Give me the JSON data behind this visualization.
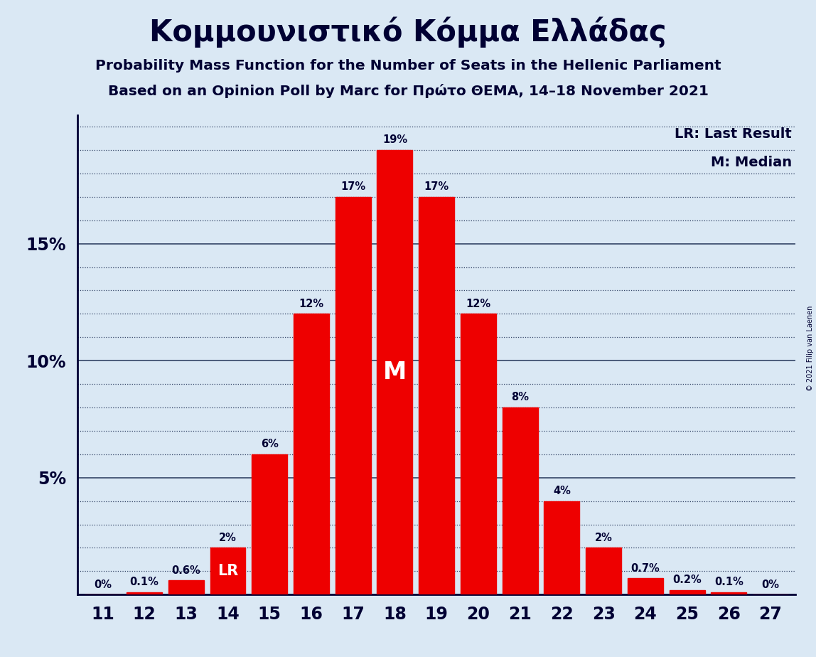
{
  "title": "Κομμουνιστικό Κόμμα Ελλάδας",
  "subtitle1": "Probability Mass Function for the Number of Seats in the Hellenic Parliament",
  "subtitle2": "Based on an Opinion Poll by Marc for Πρώτο ΘΕΜΑ, 14–18 November 2021",
  "copyright": "© 2021 Filip van Laenen",
  "categories": [
    11,
    12,
    13,
    14,
    15,
    16,
    17,
    18,
    19,
    20,
    21,
    22,
    23,
    24,
    25,
    26,
    27
  ],
  "values": [
    0.0,
    0.1,
    0.6,
    2.0,
    6.0,
    12.0,
    17.0,
    19.0,
    17.0,
    12.0,
    8.0,
    4.0,
    2.0,
    0.7,
    0.2,
    0.1,
    0.0
  ],
  "bar_color": "#ee0000",
  "bg_color": "#dae8f4",
  "text_color": "#000033",
  "label_texts": [
    "0%",
    "0.1%",
    "0.6%",
    "2%",
    "6%",
    "12%",
    "17%",
    "19%",
    "17%",
    "12%",
    "8%",
    "4%",
    "2%",
    "0.7%",
    "0.2%",
    "0.1%",
    "0%"
  ],
  "lr_seat": 14,
  "median_seat": 18,
  "ylim": [
    0,
    20.5
  ],
  "yticks": [
    5,
    10,
    15
  ],
  "ytick_labels": [
    "5%",
    "10%",
    "15%"
  ]
}
